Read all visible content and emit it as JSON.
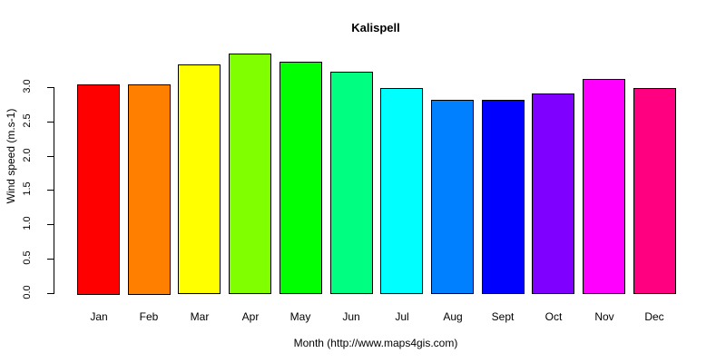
{
  "chart_data": {
    "type": "bar",
    "title": "Kalispell",
    "xlabel": "Month (http://www.maps4gis.com)",
    "ylabel": "Wind speed (m.s-1)",
    "categories": [
      "Jan",
      "Feb",
      "Mar",
      "Apr",
      "May",
      "Jun",
      "Jul",
      "Aug",
      "Sept",
      "Oct",
      "Nov",
      "Dec"
    ],
    "values": [
      3.04,
      3.04,
      3.32,
      3.48,
      3.36,
      3.22,
      2.98,
      2.81,
      2.81,
      2.9,
      3.11,
      2.98
    ],
    "colors": [
      "#FF0000",
      "#FF8000",
      "#FFFF00",
      "#80FF00",
      "#00FF00",
      "#00FF80",
      "#00FFFF",
      "#0080FF",
      "#0000FF",
      "#8000FF",
      "#FF00FF",
      "#FF0080"
    ],
    "yticks": [
      "0.0",
      "0.5",
      "1.0",
      "1.5",
      "2.0",
      "2.5",
      "3.0"
    ],
    "ylim": [
      0,
      3.5
    ],
    "grid": false,
    "legend": null
  }
}
